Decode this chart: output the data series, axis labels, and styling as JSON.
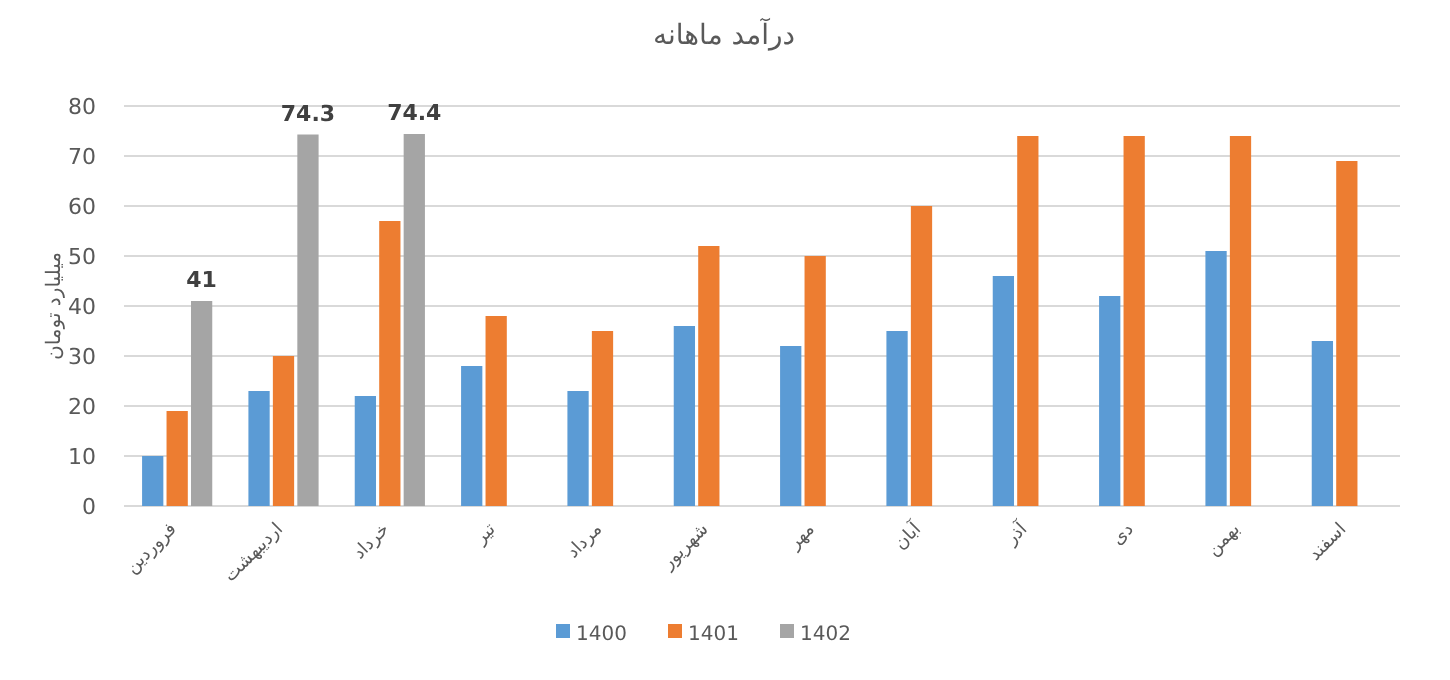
{
  "chart_data": {
    "type": "bar",
    "title": "درآمد ماهانه",
    "ylabel": "میلیارد تومان",
    "categories": [
      "فروردین",
      "اردیبهشت",
      "خرداد",
      "تیر",
      "مرداد",
      "شهریور",
      "مهر",
      "آبان",
      "آذر",
      "دی",
      "بهمن",
      "اسفند"
    ],
    "series": [
      {
        "name": "1400",
        "color": "#5b9bd5",
        "values": [
          10,
          23,
          22,
          28,
          23,
          36,
          32,
          35,
          46,
          42,
          51,
          33
        ]
      },
      {
        "name": "1401",
        "color": "#ed7d31",
        "values": [
          19,
          30,
          57,
          38,
          35,
          52,
          50,
          60,
          74,
          74,
          74,
          69
        ]
      },
      {
        "name": "1402",
        "color": "#a5a5a5",
        "values": [
          41,
          74.3,
          74.4,
          null,
          null,
          null,
          null,
          null,
          null,
          null,
          null,
          null
        ],
        "value_labels": [
          "41",
          "74.3",
          "74.4",
          null,
          null,
          null,
          null,
          null,
          null,
          null,
          null,
          null
        ]
      }
    ],
    "ylim": [
      0,
      80
    ],
    "yticks": [
      0,
      10,
      20,
      30,
      40,
      50,
      60,
      70,
      80
    ],
    "grid": "y",
    "legend": "bottom"
  }
}
